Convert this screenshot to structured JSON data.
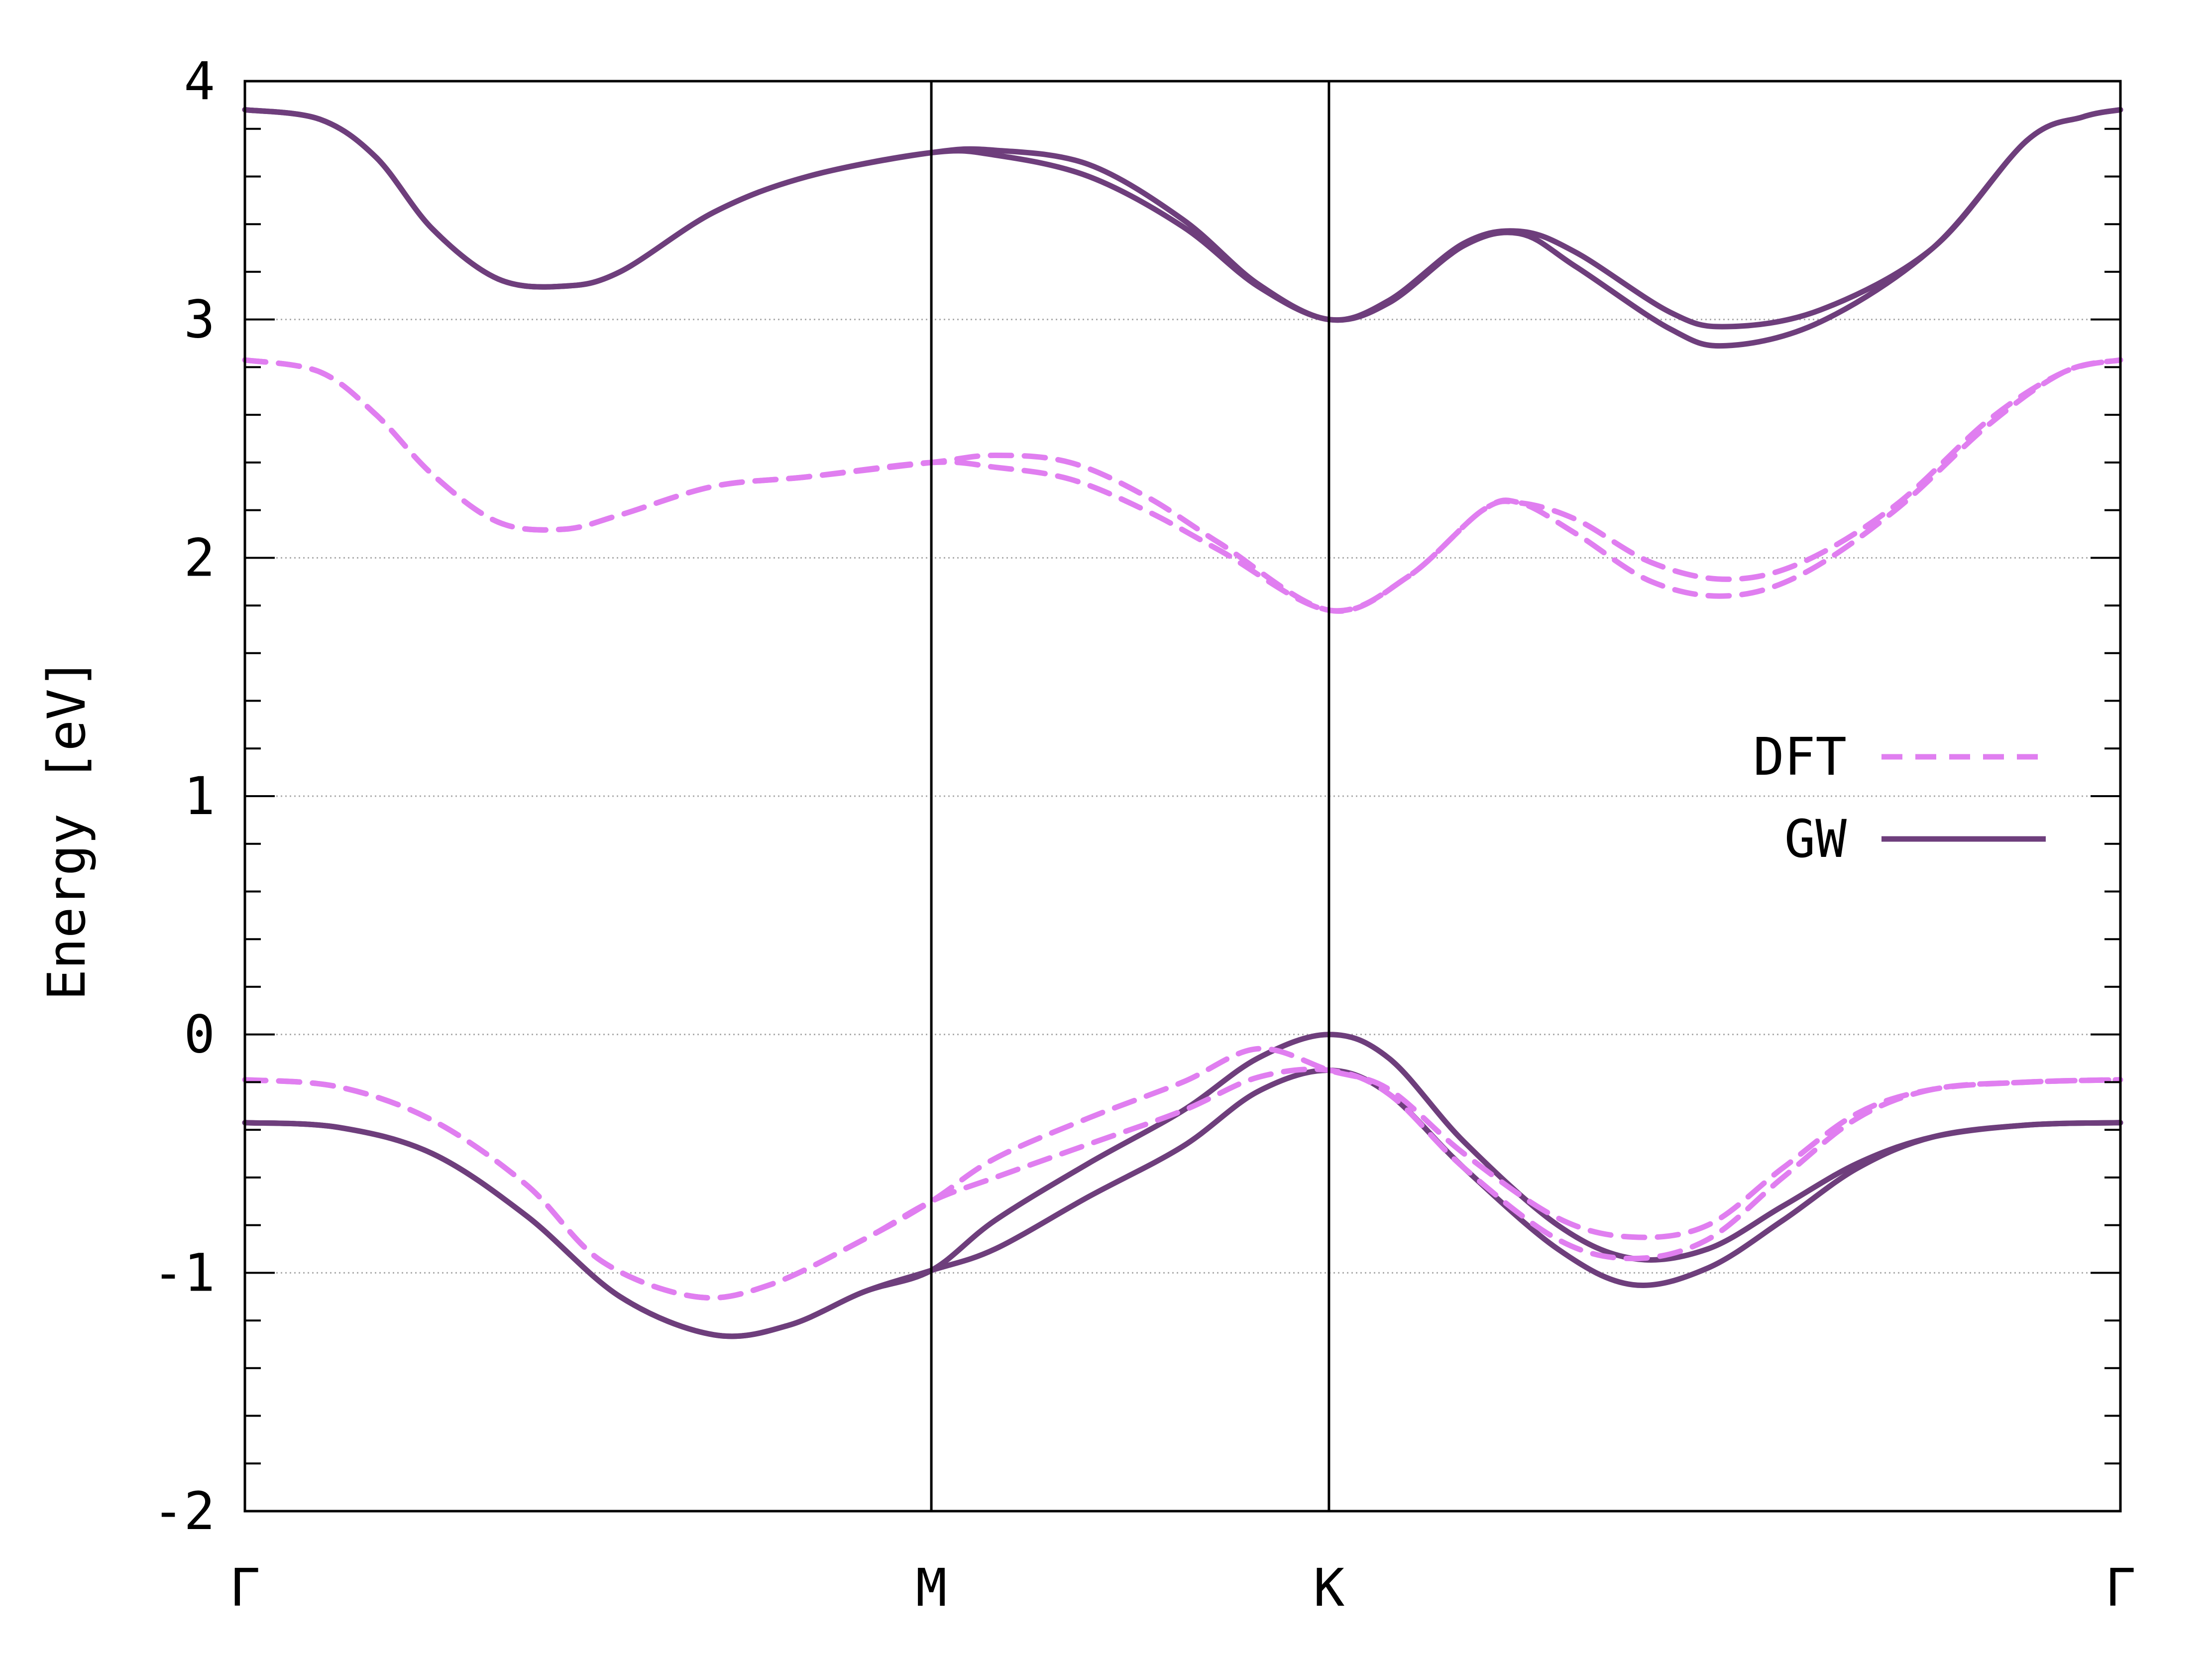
{
  "chart_data": {
    "type": "line",
    "ylabel": "Energy [eV]",
    "ylim": [
      -2,
      4
    ],
    "xlim": [
      0,
      1
    ],
    "y_ticks": [
      "-2",
      "-1",
      "0",
      "1",
      "2",
      "3",
      "4"
    ],
    "y_tick_values": [
      -2,
      -1,
      0,
      1,
      2,
      3,
      4
    ],
    "y_grid": true,
    "x_ticks": [
      {
        "label": "Γ",
        "x": 0.0
      },
      {
        "label": "M",
        "x": 0.366
      },
      {
        "label": "K",
        "x": 0.578
      },
      {
        "label": "Γ",
        "x": 1.0
      }
    ],
    "legend": {
      "position": "right",
      "entries": [
        {
          "label": "DFT",
          "style": "dashed",
          "color": "#e07ef0"
        },
        {
          "label": "GW",
          "style": "solid",
          "color": "#6e3e7c"
        }
      ]
    },
    "series": [
      {
        "legend": "GW",
        "style": "solid",
        "color": "#6e3e7c",
        "points": [
          [
            0,
            3.88
          ],
          [
            0.04,
            3.84
          ],
          [
            0.07,
            3.68
          ],
          [
            0.1,
            3.38
          ],
          [
            0.135,
            3.17
          ],
          [
            0.17,
            3.14
          ],
          [
            0.2,
            3.2
          ],
          [
            0.25,
            3.45
          ],
          [
            0.3,
            3.6
          ],
          [
            0.366,
            3.7
          ],
          [
            0.4,
            3.71
          ],
          [
            0.45,
            3.65
          ],
          [
            0.5,
            3.42
          ],
          [
            0.54,
            3.15
          ],
          [
            0.578,
            3.0
          ],
          [
            0.61,
            3.08
          ],
          [
            0.65,
            3.32
          ],
          [
            0.68,
            3.37
          ],
          [
            0.71,
            3.28
          ],
          [
            0.76,
            3.03
          ],
          [
            0.79,
            2.97
          ],
          [
            0.84,
            3.04
          ],
          [
            0.9,
            3.3
          ],
          [
            0.95,
            3.75
          ],
          [
            0.98,
            3.85
          ],
          [
            1.0,
            3.88
          ]
        ]
      },
      {
        "legend": "GW",
        "style": "solid",
        "color": "#6e3e7c",
        "points": [
          [
            0,
            3.88
          ],
          [
            0.04,
            3.84
          ],
          [
            0.07,
            3.68
          ],
          [
            0.1,
            3.38
          ],
          [
            0.135,
            3.17
          ],
          [
            0.17,
            3.14
          ],
          [
            0.2,
            3.2
          ],
          [
            0.25,
            3.45
          ],
          [
            0.3,
            3.6
          ],
          [
            0.366,
            3.7
          ],
          [
            0.4,
            3.69
          ],
          [
            0.45,
            3.6
          ],
          [
            0.5,
            3.39
          ],
          [
            0.54,
            3.14
          ],
          [
            0.578,
            3.0
          ],
          [
            0.61,
            3.07
          ],
          [
            0.65,
            3.31
          ],
          [
            0.68,
            3.36
          ],
          [
            0.71,
            3.22
          ],
          [
            0.76,
            2.96
          ],
          [
            0.79,
            2.89
          ],
          [
            0.84,
            2.99
          ],
          [
            0.9,
            3.3
          ],
          [
            0.95,
            3.75
          ],
          [
            0.98,
            3.85
          ],
          [
            1.0,
            3.88
          ]
        ]
      },
      {
        "legend": "DFT",
        "style": "dashed",
        "color": "#e07ef0",
        "points": [
          [
            0,
            2.83
          ],
          [
            0.04,
            2.78
          ],
          [
            0.07,
            2.6
          ],
          [
            0.1,
            2.35
          ],
          [
            0.135,
            2.15
          ],
          [
            0.17,
            2.12
          ],
          [
            0.2,
            2.18
          ],
          [
            0.25,
            2.3
          ],
          [
            0.3,
            2.34
          ],
          [
            0.366,
            2.4
          ],
          [
            0.4,
            2.43
          ],
          [
            0.44,
            2.4
          ],
          [
            0.48,
            2.26
          ],
          [
            0.52,
            2.06
          ],
          [
            0.578,
            1.78
          ],
          [
            0.62,
            1.92
          ],
          [
            0.66,
            2.2
          ],
          [
            0.68,
            2.23
          ],
          [
            0.71,
            2.16
          ],
          [
            0.75,
            1.98
          ],
          [
            0.79,
            1.91
          ],
          [
            0.83,
            1.98
          ],
          [
            0.88,
            2.22
          ],
          [
            0.93,
            2.58
          ],
          [
            0.97,
            2.78
          ],
          [
            1.0,
            2.83
          ]
        ]
      },
      {
        "legend": "DFT",
        "style": "dashed",
        "color": "#e07ef0",
        "points": [
          [
            0,
            2.83
          ],
          [
            0.04,
            2.78
          ],
          [
            0.07,
            2.6
          ],
          [
            0.1,
            2.35
          ],
          [
            0.135,
            2.15
          ],
          [
            0.17,
            2.12
          ],
          [
            0.2,
            2.18
          ],
          [
            0.25,
            2.3
          ],
          [
            0.3,
            2.34
          ],
          [
            0.366,
            2.4
          ],
          [
            0.4,
            2.38
          ],
          [
            0.44,
            2.33
          ],
          [
            0.48,
            2.2
          ],
          [
            0.52,
            2.03
          ],
          [
            0.578,
            1.78
          ],
          [
            0.62,
            1.92
          ],
          [
            0.66,
            2.2
          ],
          [
            0.68,
            2.23
          ],
          [
            0.71,
            2.1
          ],
          [
            0.75,
            1.9
          ],
          [
            0.79,
            1.84
          ],
          [
            0.83,
            1.93
          ],
          [
            0.88,
            2.2
          ],
          [
            0.93,
            2.56
          ],
          [
            0.97,
            2.78
          ],
          [
            1.0,
            2.83
          ]
        ]
      },
      {
        "legend": "GW",
        "style": "solid",
        "color": "#6e3e7c",
        "points": [
          [
            0,
            -0.37
          ],
          [
            0.05,
            -0.39
          ],
          [
            0.1,
            -0.5
          ],
          [
            0.15,
            -0.76
          ],
          [
            0.2,
            -1.1
          ],
          [
            0.25,
            -1.26
          ],
          [
            0.29,
            -1.22
          ],
          [
            0.33,
            -1.08
          ],
          [
            0.366,
            -0.99
          ],
          [
            0.4,
            -0.9
          ],
          [
            0.45,
            -0.68
          ],
          [
            0.5,
            -0.47
          ],
          [
            0.54,
            -0.24
          ],
          [
            0.578,
            -0.15
          ],
          [
            0.61,
            -0.25
          ],
          [
            0.65,
            -0.56
          ],
          [
            0.7,
            -0.9
          ],
          [
            0.74,
            -1.05
          ],
          [
            0.78,
            -0.98
          ],
          [
            0.82,
            -0.78
          ],
          [
            0.86,
            -0.56
          ],
          [
            0.9,
            -0.43
          ],
          [
            0.95,
            -0.38
          ],
          [
            1.0,
            -0.37
          ]
        ]
      },
      {
        "legend": "GW",
        "style": "solid",
        "color": "#6e3e7c",
        "points": [
          [
            0,
            -0.37
          ],
          [
            0.05,
            -0.39
          ],
          [
            0.1,
            -0.5
          ],
          [
            0.15,
            -0.76
          ],
          [
            0.2,
            -1.1
          ],
          [
            0.25,
            -1.26
          ],
          [
            0.29,
            -1.22
          ],
          [
            0.33,
            -1.08
          ],
          [
            0.366,
            -0.99
          ],
          [
            0.4,
            -0.78
          ],
          [
            0.45,
            -0.54
          ],
          [
            0.5,
            -0.32
          ],
          [
            0.54,
            -0.1
          ],
          [
            0.578,
            0.0
          ],
          [
            0.61,
            -0.1
          ],
          [
            0.65,
            -0.45
          ],
          [
            0.7,
            -0.8
          ],
          [
            0.74,
            -0.94
          ],
          [
            0.78,
            -0.9
          ],
          [
            0.82,
            -0.72
          ],
          [
            0.86,
            -0.54
          ],
          [
            0.9,
            -0.43
          ],
          [
            0.95,
            -0.38
          ],
          [
            1.0,
            -0.37
          ]
        ]
      },
      {
        "legend": "DFT",
        "style": "dashed",
        "color": "#e07ef0",
        "points": [
          [
            0,
            -0.19
          ],
          [
            0.05,
            -0.22
          ],
          [
            0.1,
            -0.36
          ],
          [
            0.15,
            -0.63
          ],
          [
            0.19,
            -0.95
          ],
          [
            0.24,
            -1.1
          ],
          [
            0.28,
            -1.05
          ],
          [
            0.33,
            -0.86
          ],
          [
            0.366,
            -0.7
          ],
          [
            0.4,
            -0.52
          ],
          [
            0.45,
            -0.35
          ],
          [
            0.5,
            -0.2
          ],
          [
            0.54,
            -0.06
          ],
          [
            0.578,
            -0.15
          ],
          [
            0.61,
            -0.23
          ],
          [
            0.65,
            -0.5
          ],
          [
            0.7,
            -0.77
          ],
          [
            0.74,
            -0.85
          ],
          [
            0.78,
            -0.8
          ],
          [
            0.82,
            -0.56
          ],
          [
            0.86,
            -0.33
          ],
          [
            0.9,
            -0.23
          ],
          [
            0.95,
            -0.2
          ],
          [
            1.0,
            -0.19
          ]
        ]
      },
      {
        "legend": "DFT",
        "style": "dashed",
        "color": "#e07ef0",
        "points": [
          [
            0,
            -0.19
          ],
          [
            0.05,
            -0.22
          ],
          [
            0.1,
            -0.36
          ],
          [
            0.15,
            -0.63
          ],
          [
            0.19,
            -0.95
          ],
          [
            0.24,
            -1.1
          ],
          [
            0.28,
            -1.05
          ],
          [
            0.33,
            -0.86
          ],
          [
            0.366,
            -0.7
          ],
          [
            0.4,
            -0.6
          ],
          [
            0.45,
            -0.46
          ],
          [
            0.5,
            -0.32
          ],
          [
            0.54,
            -0.18
          ],
          [
            0.578,
            -0.15
          ],
          [
            0.61,
            -0.25
          ],
          [
            0.65,
            -0.56
          ],
          [
            0.7,
            -0.86
          ],
          [
            0.74,
            -0.94
          ],
          [
            0.78,
            -0.86
          ],
          [
            0.82,
            -0.6
          ],
          [
            0.86,
            -0.35
          ],
          [
            0.9,
            -0.23
          ],
          [
            0.95,
            -0.2
          ],
          [
            1.0,
            -0.19
          ]
        ]
      }
    ]
  }
}
